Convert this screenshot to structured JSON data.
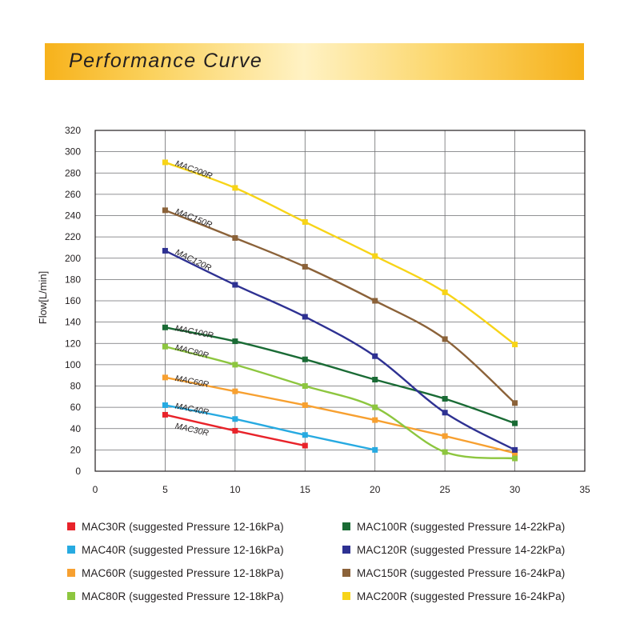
{
  "page": {
    "title": "Performance Curve"
  },
  "chart_data": {
    "type": "line",
    "title": "Performance Curve",
    "xlabel": "",
    "ylabel": "Flow[L/min]",
    "xlim": [
      0,
      35
    ],
    "ylim": [
      0,
      320
    ],
    "x_ticks": [
      0,
      5,
      10,
      15,
      20,
      25,
      30,
      35
    ],
    "y_ticks": [
      0,
      20,
      40,
      60,
      80,
      100,
      120,
      140,
      160,
      180,
      200,
      220,
      240,
      260,
      280,
      300,
      320
    ],
    "grid": true,
    "legend_position": "bottom",
    "series": [
      {
        "name": "MAC30R",
        "legend": "MAC30R (suggested Pressure 12-16kPa)",
        "color": "#e8232a",
        "x": [
          5,
          10,
          15
        ],
        "values": [
          53,
          38,
          24
        ]
      },
      {
        "name": "MAC40R",
        "legend": "MAC40R (suggested Pressure 12-16kPa)",
        "color": "#27aae1",
        "x": [
          5,
          10,
          15,
          20
        ],
        "values": [
          62,
          49,
          34,
          20
        ]
      },
      {
        "name": "MAC60R",
        "legend": "MAC60R (suggested Pressure 12-18kPa)",
        "color": "#f7a030",
        "x": [
          5,
          10,
          15,
          20,
          25,
          30
        ],
        "values": [
          88,
          75,
          62,
          48,
          33,
          17
        ]
      },
      {
        "name": "MAC80R",
        "legend": "MAC80R (suggested Pressure 12-18kPa)",
        "color": "#8dc63f",
        "x": [
          5,
          10,
          15,
          20,
          25,
          30
        ],
        "values": [
          117,
          100,
          80,
          60,
          18,
          12
        ]
      },
      {
        "name": "MAC100R",
        "legend": "MAC100R (suggested Pressure 14-22kPa)",
        "color": "#1a6b35",
        "x": [
          5,
          10,
          15,
          20,
          25,
          30
        ],
        "values": [
          135,
          122,
          105,
          86,
          68,
          45
        ]
      },
      {
        "name": "MAC120R",
        "legend": "MAC120R (suggested Pressure 14-22kPa)",
        "color": "#2e3192",
        "x": [
          5,
          10,
          15,
          20,
          25,
          30
        ],
        "values": [
          207,
          175,
          145,
          108,
          55,
          20
        ]
      },
      {
        "name": "MAC150R",
        "legend": "MAC150R (suggested Pressure 16-24kPa)",
        "color": "#8b6239",
        "x": [
          5,
          10,
          15,
          20,
          25,
          30
        ],
        "values": [
          245,
          219,
          192,
          160,
          124,
          64
        ]
      },
      {
        "name": "MAC200R",
        "legend": "MAC200R (suggested Pressure 16-24kPa)",
        "color": "#f7d418",
        "x": [
          5,
          10,
          15,
          20,
          25,
          30
        ],
        "values": [
          290,
          266,
          234,
          202,
          168,
          119
        ]
      }
    ]
  }
}
